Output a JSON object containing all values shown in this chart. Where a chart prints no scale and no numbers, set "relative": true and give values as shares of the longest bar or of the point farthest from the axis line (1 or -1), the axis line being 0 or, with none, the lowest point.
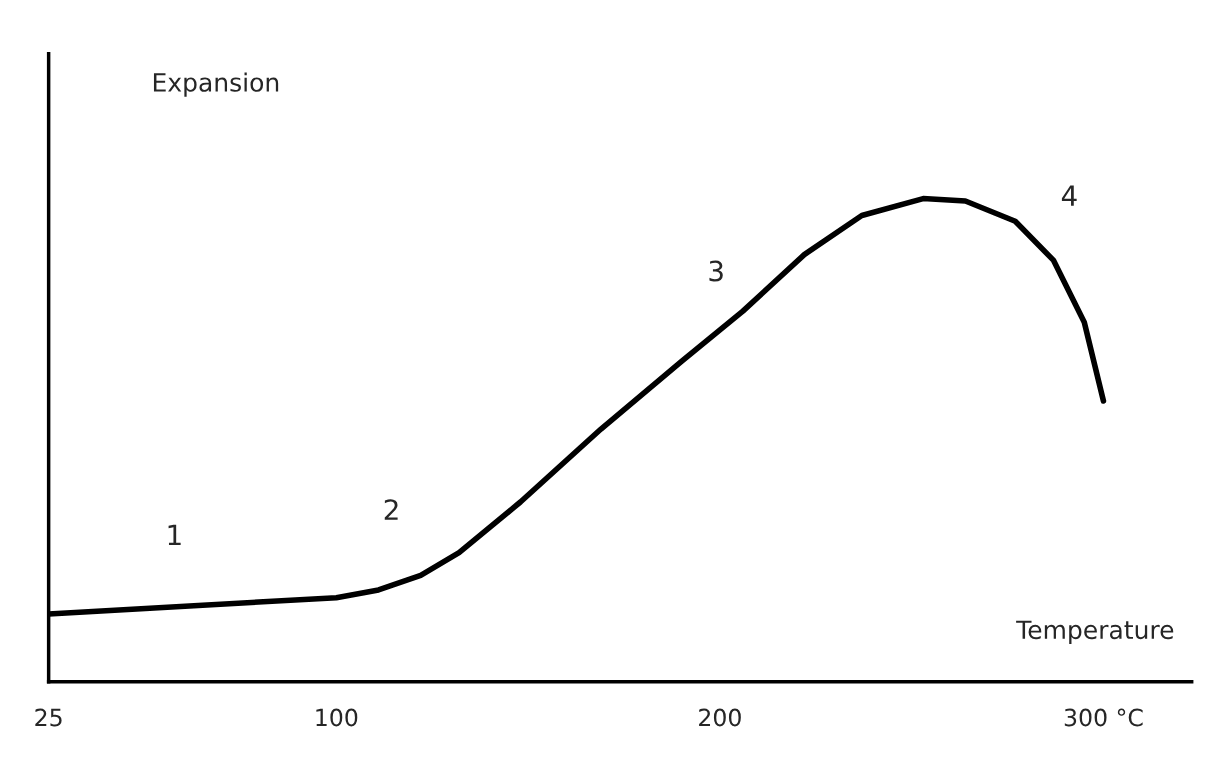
{
  "chart_data": {
    "type": "line",
    "relative": true,
    "xlabel": "Temperature",
    "ylabel": "Expansion",
    "x": [
      25,
      64,
      100,
      111,
      122,
      132,
      148,
      169,
      190,
      206,
      222,
      237,
      253,
      264,
      277,
      287,
      295,
      300
    ],
    "series": [
      {
        "color": "#000000",
        "values": [
          0.14,
          0.158,
          0.174,
          0.19,
          0.22,
          0.267,
          0.372,
          0.523,
          0.663,
          0.767,
          0.884,
          0.965,
          1.0,
          0.995,
          0.953,
          0.872,
          0.744,
          0.581
        ]
      }
    ],
    "xlim": [
      25,
      323
    ],
    "xticks": [
      25,
      100,
      200,
      {
        "value": 300,
        "label": "300 °C"
      }
    ],
    "annotations": [
      "1",
      "2",
      "3",
      "4"
    ],
    "grid": false,
    "marker": "none",
    "line_style": "solid"
  }
}
